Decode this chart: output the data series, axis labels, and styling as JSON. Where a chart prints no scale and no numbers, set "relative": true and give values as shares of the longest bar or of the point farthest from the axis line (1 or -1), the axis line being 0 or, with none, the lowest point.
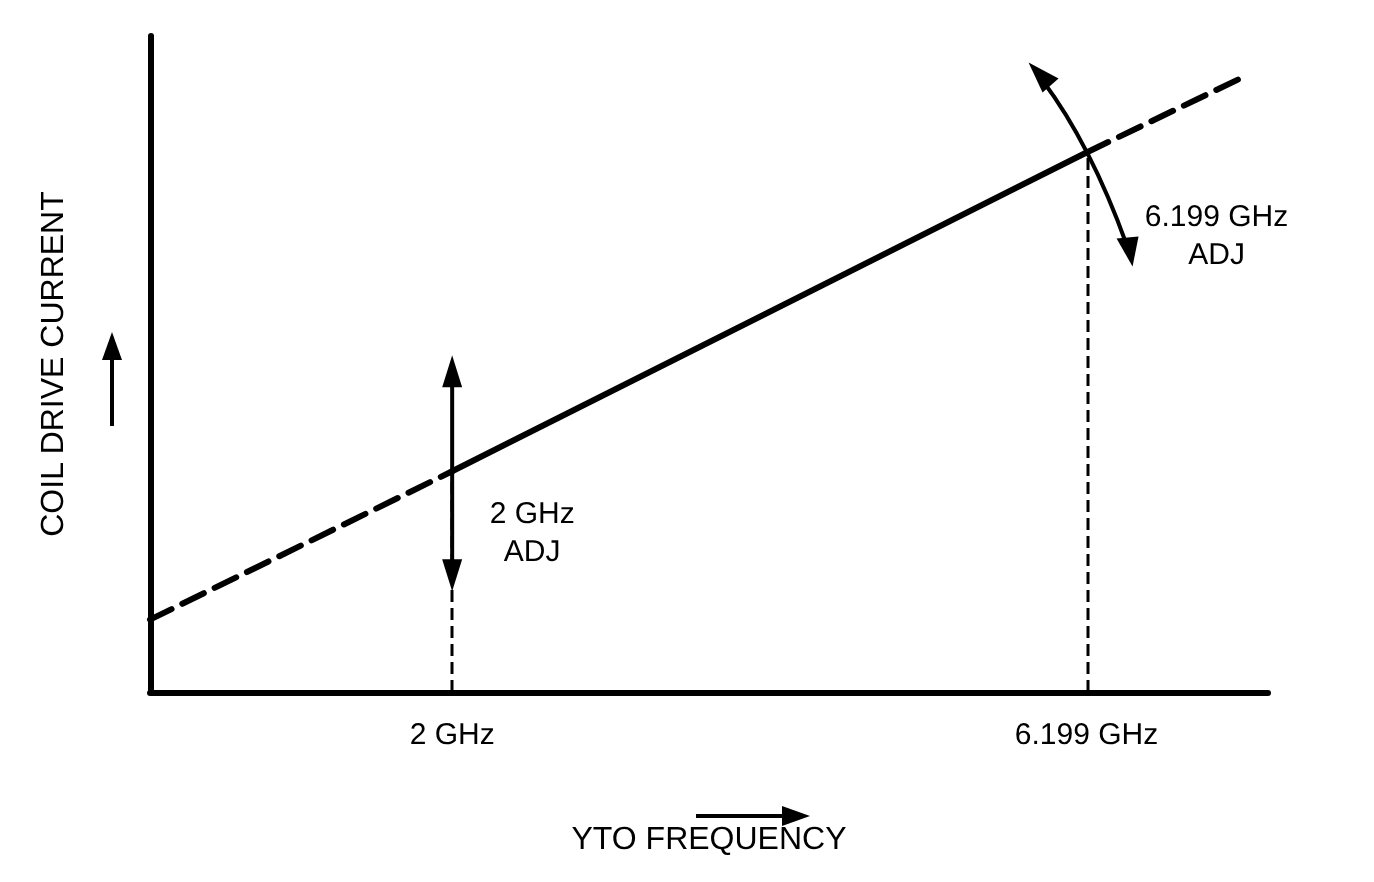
{
  "chart_data": {
    "type": "line",
    "xlabel": "YTO FREQUENCY",
    "ylabel": "COIL DRIVE CURRENT",
    "relative": true,
    "xlim": [
      0,
      7.4
    ],
    "xticks": [
      {
        "value": 2,
        "label": "2 GHz"
      },
      {
        "value": 6.199,
        "label": "6.199 GHz"
      }
    ],
    "series": [
      {
        "color": "#000000",
        "line_style": "dashed",
        "x": [
          0,
          2
        ],
        "values": [
          0.118,
          0.36
        ]
      },
      {
        "color": "#000000",
        "line_style": "solid",
        "x": [
          2,
          6.199
        ],
        "values": [
          0.36,
          0.88
        ]
      },
      {
        "color": "#000000",
        "line_style": "dashed",
        "x": [
          6.199,
          7.21
        ],
        "values": [
          0.88,
          1
        ]
      }
    ],
    "ref_lines": [
      {
        "axis": "x",
        "value": 2,
        "color": "#000000",
        "line_style": "dashed"
      },
      {
        "axis": "x",
        "value": 6.199,
        "color": "#000000",
        "line_style": "dashed"
      }
    ],
    "annotations": [
      {
        "text": "2 GHz\nADJ",
        "x": 2,
        "y": 0.36
      },
      {
        "text": "6.199 GHz\nADJ",
        "x": 6.199,
        "y": 0.88
      }
    ],
    "grid": false,
    "marker": "none"
  }
}
